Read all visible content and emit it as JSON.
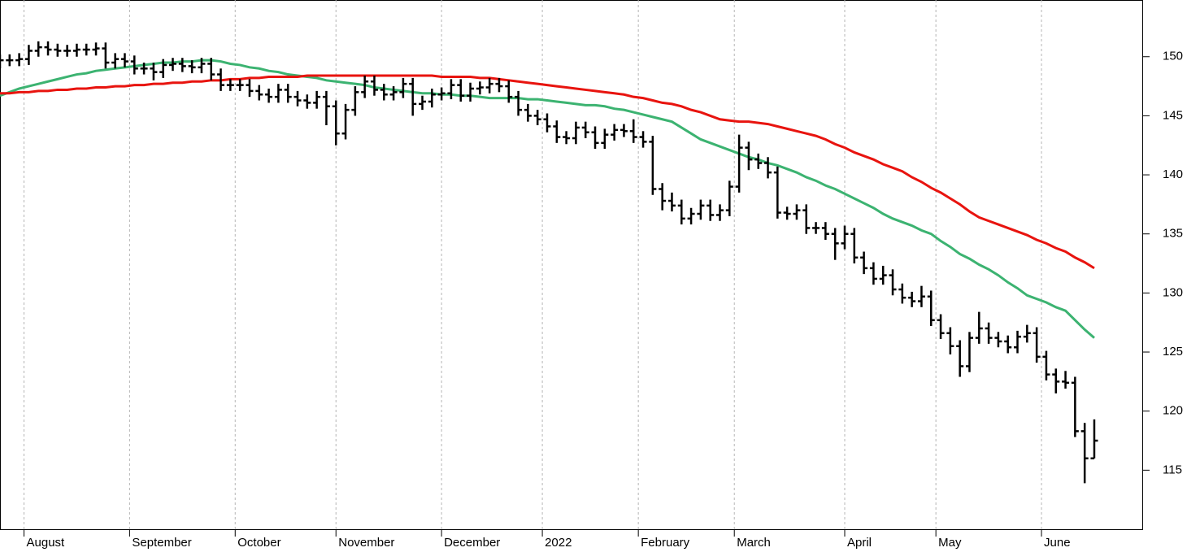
{
  "chart_data": {
    "type": "ohlc",
    "x": [
      0,
      2,
      4,
      6,
      8,
      10,
      12,
      14,
      16,
      18,
      20,
      22,
      24,
      26,
      28,
      30,
      32,
      34,
      36,
      38,
      40,
      42,
      44,
      46,
      48,
      50,
      52,
      54,
      56,
      58,
      60,
      62,
      64,
      66,
      68,
      70,
      72,
      74,
      76,
      78,
      80,
      82,
      84,
      86,
      88,
      90,
      92,
      94,
      96,
      98,
      100,
      102,
      104,
      106,
      108,
      110,
      112,
      114,
      116,
      118,
      120,
      122,
      124,
      126,
      128,
      130,
      132,
      134,
      136,
      138,
      140,
      142,
      144,
      146,
      148,
      150,
      152,
      154,
      156,
      158,
      160,
      162,
      164,
      166,
      168,
      170,
      172,
      174,
      176,
      178,
      180,
      182,
      184,
      186,
      188,
      190,
      192,
      194,
      196,
      198,
      200,
      202,
      204,
      206,
      208,
      210,
      212,
      214,
      216,
      218,
      220,
      222,
      224,
      226,
      228
    ],
    "open": [
      149.5,
      149.7,
      149.7,
      149.8,
      150.5,
      150.8,
      150.6,
      150.5,
      150.5,
      150.6,
      150.6,
      150.7,
      149.5,
      149.8,
      149.6,
      149.0,
      149.0,
      148.7,
      149.3,
      149.4,
      149.2,
      149.1,
      149.4,
      148.5,
      147.6,
      147.6,
      147.6,
      147.1,
      146.8,
      146.6,
      147.2,
      146.6,
      146.3,
      146.1,
      146.6,
      145.8,
      143.5,
      145.5,
      147.0,
      147.9,
      147.2,
      146.8,
      147.0,
      147.7,
      146.0,
      146.2,
      146.8,
      146.9,
      147.6,
      146.7,
      147.3,
      147.4,
      147.7,
      147.5,
      146.6,
      145.5,
      145.0,
      144.7,
      144.1,
      143.2,
      143.1,
      144.0,
      143.6,
      142.7,
      143.4,
      143.8,
      143.7,
      143.2,
      142.8,
      138.8,
      137.8,
      137.4,
      136.3,
      136.7,
      137.4,
      136.6,
      137.0,
      139.0,
      142.3,
      141.3,
      141.0,
      140.2,
      136.8,
      136.7,
      137.0,
      135.5,
      135.5,
      135.0,
      134.2,
      135.0,
      133.0,
      132.1,
      131.2,
      131.5,
      130.3,
      129.6,
      129.3,
      129.7,
      127.7,
      126.6,
      125.5,
      123.8,
      126.2,
      127.0,
      126.2,
      125.9,
      125.4,
      126.3,
      126.6,
      124.6,
      123.1,
      122.5,
      122.4,
      118.3,
      116.0
    ],
    "high": [
      150.2,
      150.2,
      150.3,
      151.0,
      151.3,
      151.3,
      151.1,
      151.0,
      151.1,
      151.1,
      151.2,
      151.2,
      150.3,
      150.3,
      150.1,
      149.5,
      149.5,
      149.8,
      149.9,
      149.9,
      149.7,
      149.9,
      149.9,
      149.0,
      148.1,
      148.1,
      148.1,
      147.6,
      147.3,
      147.7,
      147.7,
      147.1,
      146.8,
      147.1,
      147.1,
      146.3,
      146.0,
      147.5,
      148.4,
      148.4,
      147.7,
      147.5,
      148.2,
      148.2,
      146.7,
      147.3,
      147.4,
      148.1,
      148.1,
      147.8,
      147.9,
      148.2,
      148.2,
      148.0,
      147.1,
      146.0,
      145.5,
      145.2,
      144.6,
      143.7,
      144.5,
      144.5,
      144.1,
      143.9,
      144.3,
      144.3,
      144.7,
      143.7,
      143.3,
      139.3,
      138.5,
      137.9,
      137.2,
      137.9,
      137.9,
      137.5,
      139.5,
      143.4,
      142.8,
      141.8,
      141.5,
      140.7,
      137.3,
      137.5,
      137.5,
      136.0,
      136.0,
      135.5,
      135.7,
      135.5,
      133.5,
      132.6,
      132.3,
      132.0,
      130.8,
      130.1,
      130.6,
      130.2,
      128.2,
      127.1,
      126.0,
      126.7,
      128.4,
      127.5,
      126.7,
      126.4,
      126.8,
      127.3,
      127.1,
      125.1,
      123.6,
      123.4,
      122.9,
      119.0,
      119.3
    ],
    "low": [
      149.0,
      149.2,
      149.2,
      149.3,
      150.0,
      150.1,
      150.0,
      150.0,
      150.0,
      150.1,
      150.1,
      149.0,
      149.0,
      149.1,
      148.5,
      148.5,
      148.0,
      148.2,
      148.8,
      148.7,
      148.6,
      148.6,
      148.0,
      147.1,
      147.1,
      147.1,
      146.6,
      146.3,
      146.1,
      146.1,
      146.1,
      145.8,
      145.6,
      145.6,
      144.2,
      142.5,
      143.0,
      145.0,
      146.5,
      146.7,
      146.3,
      146.3,
      146.5,
      145.0,
      145.5,
      145.7,
      146.3,
      146.4,
      146.2,
      146.2,
      146.8,
      146.9,
      147.0,
      146.1,
      145.0,
      144.5,
      144.2,
      143.6,
      142.7,
      142.6,
      142.6,
      143.1,
      142.2,
      142.2,
      142.9,
      143.2,
      142.7,
      142.3,
      138.3,
      137.0,
      136.9,
      135.8,
      135.8,
      136.2,
      136.1,
      136.1,
      136.5,
      138.5,
      140.4,
      140.5,
      139.7,
      136.3,
      136.2,
      136.2,
      135.0,
      135.0,
      134.5,
      132.8,
      133.7,
      132.5,
      131.6,
      130.7,
      130.7,
      129.8,
      129.1,
      128.8,
      128.8,
      127.2,
      126.1,
      124.8,
      122.9,
      123.3,
      125.7,
      125.7,
      125.4,
      124.9,
      124.9,
      125.8,
      124.1,
      122.6,
      121.5,
      121.9,
      117.8,
      113.9,
      116.0
    ],
    "close": [
      149.7,
      149.7,
      149.8,
      150.5,
      150.8,
      150.6,
      150.5,
      150.5,
      150.6,
      150.6,
      150.7,
      149.5,
      149.8,
      149.6,
      149.0,
      149.0,
      148.7,
      149.3,
      149.4,
      149.2,
      149.1,
      149.4,
      148.5,
      147.6,
      147.6,
      147.6,
      147.1,
      146.8,
      146.6,
      147.2,
      146.6,
      146.3,
      146.1,
      146.6,
      145.8,
      143.5,
      145.5,
      147.0,
      147.9,
      147.2,
      146.8,
      147.0,
      147.7,
      146.0,
      146.2,
      146.8,
      146.9,
      147.6,
      146.7,
      147.3,
      147.4,
      147.7,
      147.5,
      146.6,
      145.5,
      145.0,
      144.7,
      144.1,
      143.2,
      143.1,
      144.0,
      143.6,
      142.7,
      143.4,
      143.8,
      143.7,
      143.2,
      142.8,
      138.8,
      137.8,
      137.4,
      136.3,
      136.7,
      137.4,
      136.6,
      137.0,
      139.0,
      142.3,
      141.3,
      141.0,
      140.2,
      136.8,
      136.7,
      137.0,
      135.5,
      135.5,
      135.0,
      134.2,
      135.0,
      133.0,
      132.1,
      131.2,
      131.5,
      130.3,
      129.6,
      129.3,
      129.7,
      127.7,
      126.6,
      125.5,
      123.8,
      126.2,
      127.0,
      126.2,
      125.9,
      125.4,
      126.3,
      126.6,
      124.6,
      123.1,
      122.5,
      122.4,
      118.3,
      116.0,
      117.5
    ],
    "color": "#000000",
    "lines": [
      {
        "color": "#3cb371",
        "values": [
          146.7,
          147.0,
          147.3,
          147.5,
          147.7,
          147.9,
          148.1,
          148.3,
          148.5,
          148.6,
          148.8,
          148.9,
          149.0,
          149.1,
          149.2,
          149.3,
          149.4,
          149.5,
          149.5,
          149.6,
          149.6,
          149.7,
          149.7,
          149.6,
          149.4,
          149.3,
          149.1,
          149.0,
          148.8,
          148.7,
          148.5,
          148.4,
          148.3,
          148.2,
          148.0,
          147.9,
          147.8,
          147.7,
          147.6,
          147.4,
          147.3,
          147.2,
          147.1,
          147.0,
          146.9,
          146.9,
          146.8,
          146.8,
          146.7,
          146.7,
          146.6,
          146.5,
          146.5,
          146.5,
          146.5,
          146.4,
          146.4,
          146.3,
          146.2,
          146.1,
          146.0,
          145.9,
          145.9,
          145.8,
          145.6,
          145.5,
          145.3,
          145.1,
          144.9,
          144.7,
          144.5,
          144.0,
          143.5,
          143.0,
          142.7,
          142.4,
          142.1,
          141.8,
          141.5,
          141.3,
          141.0,
          140.8,
          140.5,
          140.2,
          139.8,
          139.5,
          139.1,
          138.8,
          138.4,
          138.0,
          137.6,
          137.2,
          136.7,
          136.3,
          136.0,
          135.7,
          135.3,
          135.0,
          134.4,
          133.9,
          133.3,
          132.9,
          132.4,
          132.0,
          131.5,
          130.9,
          130.4,
          129.8,
          129.5,
          129.2,
          128.8,
          128.5,
          127.7,
          126.9,
          126.2
        ]
      },
      {
        "color": "#e8140f",
        "values": [
          146.9,
          146.9,
          147.0,
          147.0,
          147.1,
          147.1,
          147.2,
          147.2,
          147.3,
          147.3,
          147.4,
          147.4,
          147.5,
          147.5,
          147.6,
          147.6,
          147.7,
          147.7,
          147.8,
          147.8,
          147.9,
          147.9,
          148.0,
          148.0,
          148.1,
          148.1,
          148.2,
          148.2,
          148.3,
          148.3,
          148.3,
          148.3,
          148.4,
          148.4,
          148.4,
          148.4,
          148.4,
          148.4,
          148.4,
          148.4,
          148.4,
          148.4,
          148.4,
          148.4,
          148.4,
          148.4,
          148.3,
          148.3,
          148.3,
          148.3,
          148.2,
          148.2,
          148.1,
          148.0,
          147.9,
          147.8,
          147.7,
          147.6,
          147.5,
          147.4,
          147.3,
          147.2,
          147.1,
          147.0,
          146.9,
          146.8,
          146.6,
          146.5,
          146.3,
          146.1,
          146.0,
          145.8,
          145.5,
          145.3,
          145.0,
          144.7,
          144.6,
          144.5,
          144.5,
          144.4,
          144.3,
          144.1,
          143.9,
          143.7,
          143.5,
          143.3,
          143.0,
          142.6,
          142.3,
          141.9,
          141.6,
          141.3,
          140.9,
          140.6,
          140.3,
          139.8,
          139.4,
          138.9,
          138.5,
          138.0,
          137.5,
          136.9,
          136.4,
          136.1,
          135.8,
          135.5,
          135.2,
          134.9,
          134.5,
          134.2,
          133.8,
          133.5,
          133.0,
          132.6,
          132.1
        ]
      }
    ],
    "xlim": [
      0,
      238
    ],
    "xticks": [
      {
        "value": 5,
        "label": "August"
      },
      {
        "value": 27,
        "label": "September"
      },
      {
        "value": 49,
        "label": "October"
      },
      {
        "value": 70,
        "label": "November"
      },
      {
        "value": 92,
        "label": "December"
      },
      {
        "value": 113,
        "label": "2022"
      },
      {
        "value": 133,
        "label": "February"
      },
      {
        "value": 153,
        "label": "March"
      },
      {
        "value": 176,
        "label": "April"
      },
      {
        "value": 195,
        "label": "May"
      },
      {
        "value": 217,
        "label": "June"
      }
    ],
    "ylim": [
      110,
      154.8
    ],
    "yticks": [
      115,
      120,
      125,
      130,
      135,
      140,
      145,
      150
    ],
    "grid": true
  }
}
